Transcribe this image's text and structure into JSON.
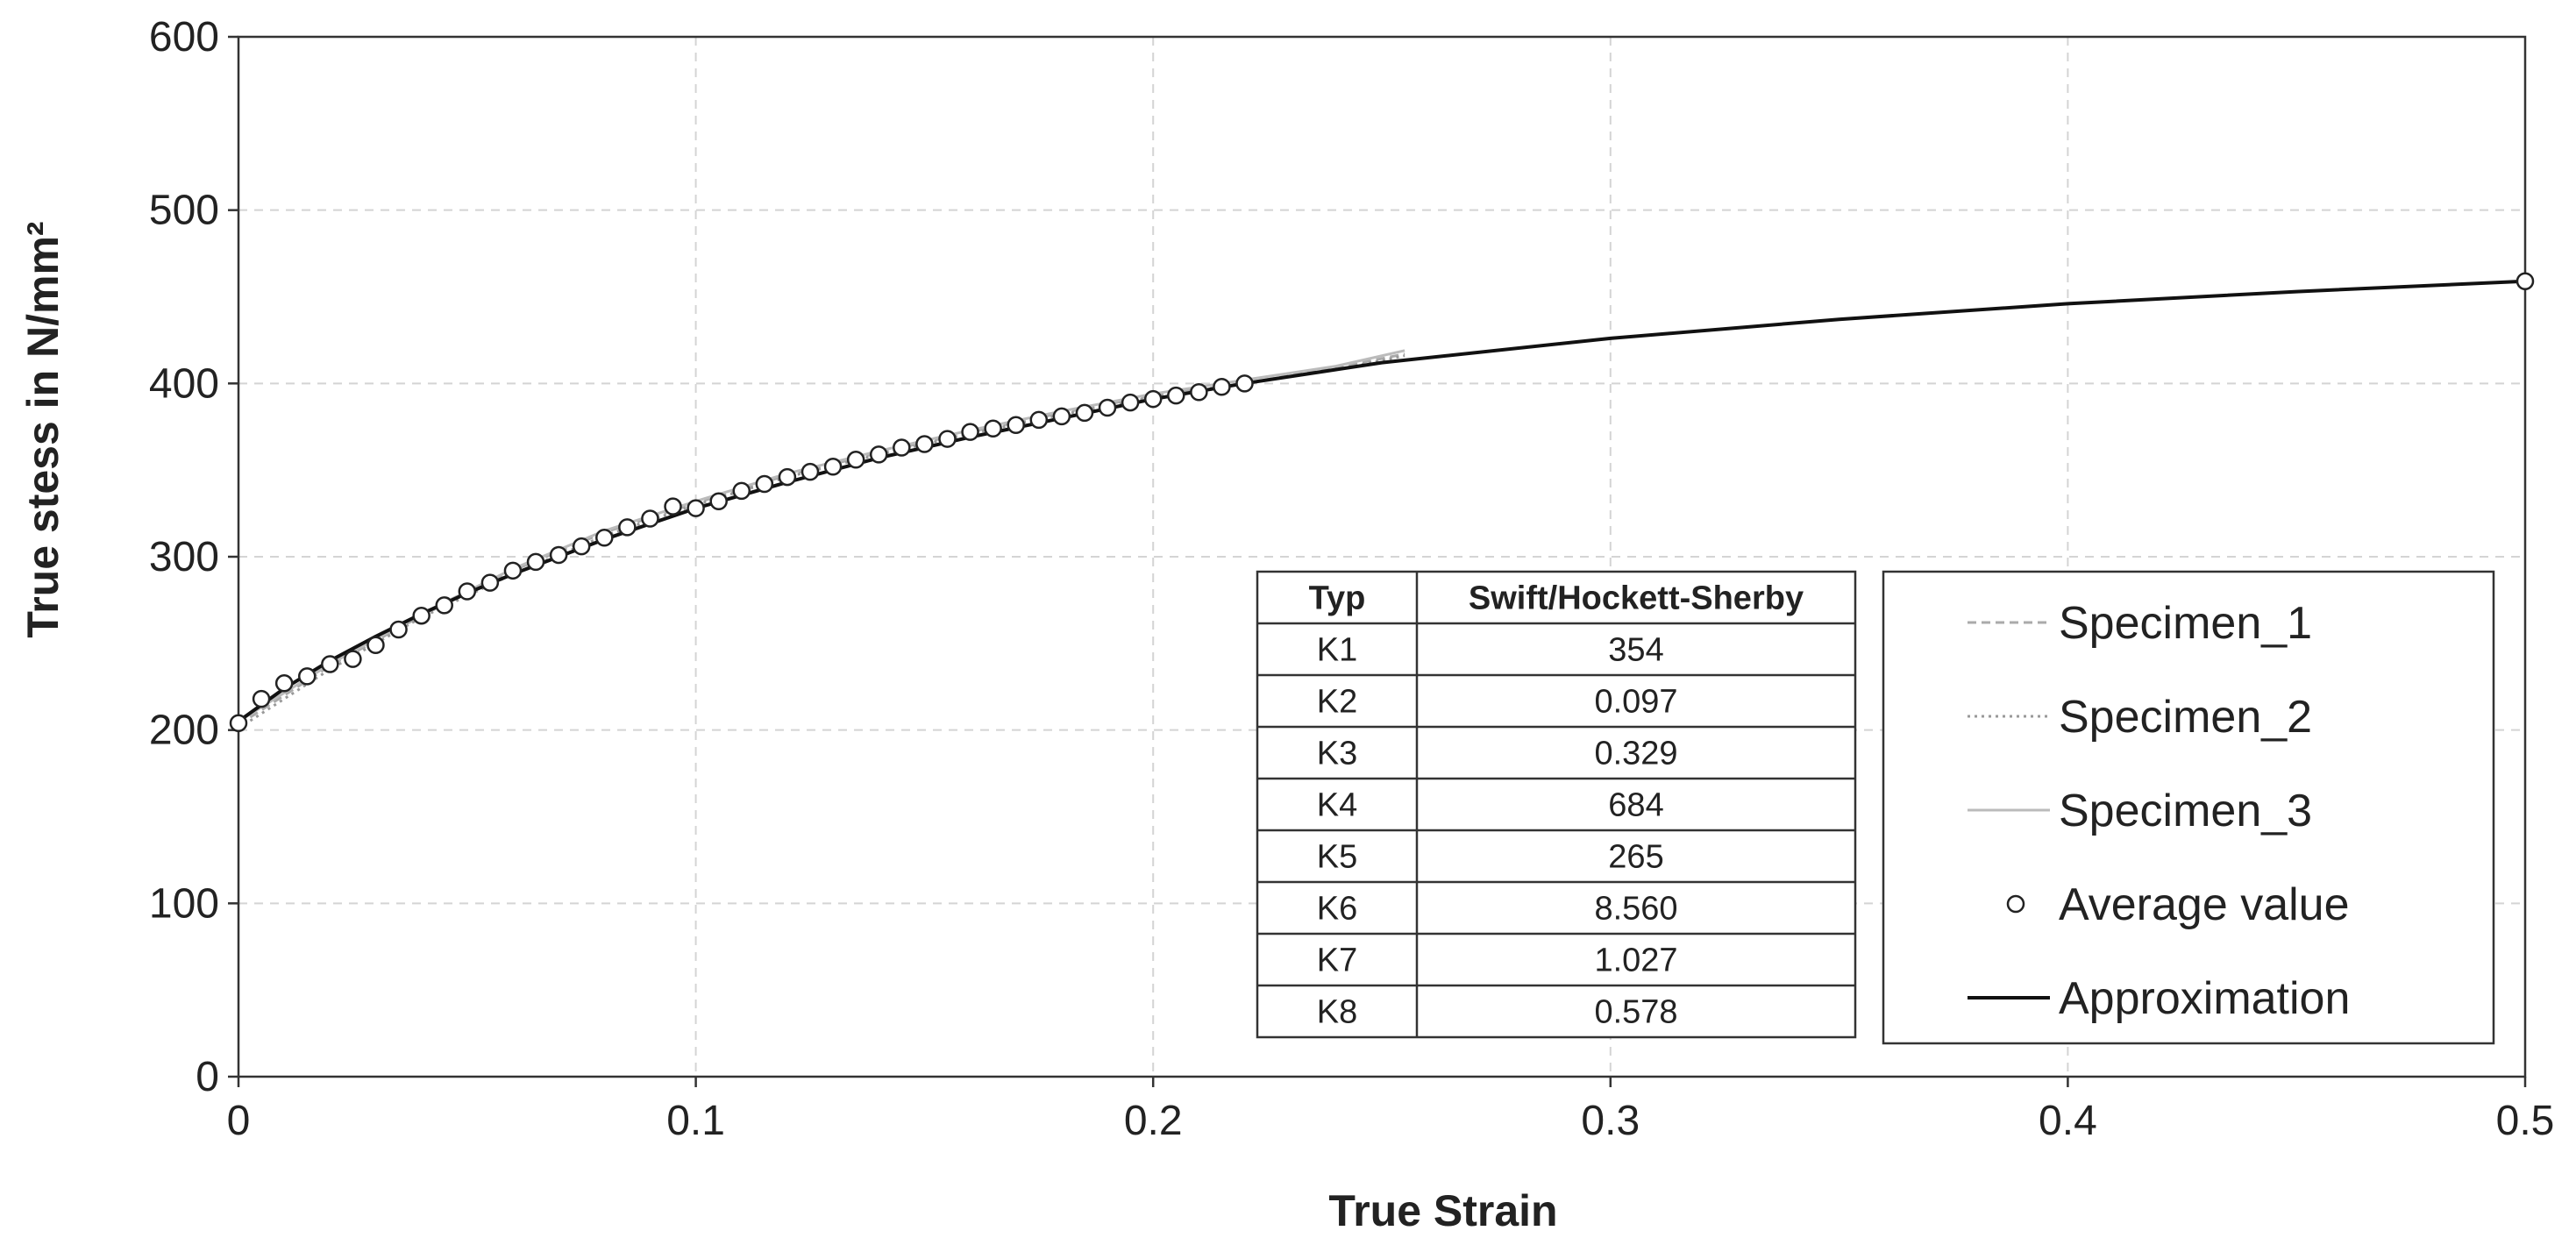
{
  "chart_data": {
    "type": "line",
    "title": "",
    "xlabel": "True Strain",
    "ylabel": "True stess in N/mm²",
    "xlim": [
      0,
      0.5
    ],
    "ylim": [
      0,
      600
    ],
    "x_ticks": [
      "0",
      "0.1",
      "0.2",
      "0.3",
      "0.4",
      "0.5"
    ],
    "y_ticks": [
      "0",
      "100",
      "200",
      "300",
      "400",
      "500",
      "600"
    ],
    "grid": true,
    "legend_position": "bottom-right",
    "series": [
      {
        "name": "Specimen_1",
        "style": "dashed",
        "color": "#aaaaaa",
        "x": [
          0,
          0.02,
          0.04,
          0.06,
          0.08,
          0.1,
          0.12,
          0.14,
          0.16,
          0.18,
          0.2,
          0.22,
          0.24,
          0.255
        ],
        "y": [
          203,
          237,
          266,
          292,
          314,
          331,
          347,
          360,
          372,
          383,
          393,
          400,
          409,
          417
        ]
      },
      {
        "name": "Specimen_2",
        "style": "dotted",
        "color": "#999999",
        "x": [
          0,
          0.02,
          0.04,
          0.06,
          0.08,
          0.1,
          0.12,
          0.14,
          0.16,
          0.18,
          0.2,
          0.22,
          0.24,
          0.255
        ],
        "y": [
          201,
          235,
          265,
          290,
          312,
          330,
          346,
          359,
          371,
          382,
          392,
          400,
          408,
          416
        ]
      },
      {
        "name": "Specimen_3",
        "style": "solid",
        "color": "#bbbbbb",
        "x": [
          0,
          0.02,
          0.04,
          0.06,
          0.08,
          0.1,
          0.12,
          0.14,
          0.16,
          0.18,
          0.2,
          0.22,
          0.24,
          0.255
        ],
        "y": [
          205,
          238,
          267,
          293,
          315,
          332,
          348,
          361,
          373,
          384,
          394,
          402,
          410,
          419
        ]
      },
      {
        "name": "Average value",
        "style": "markers",
        "color": "#222222",
        "x": [
          0,
          0.005,
          0.01,
          0.015,
          0.02,
          0.025,
          0.03,
          0.035,
          0.04,
          0.045,
          0.05,
          0.055,
          0.06,
          0.065,
          0.07,
          0.075,
          0.08,
          0.085,
          0.09,
          0.095,
          0.1,
          0.105,
          0.11,
          0.115,
          0.12,
          0.125,
          0.13,
          0.135,
          0.14,
          0.145,
          0.15,
          0.155,
          0.16,
          0.165,
          0.17,
          0.175,
          0.18,
          0.185,
          0.19,
          0.195,
          0.2,
          0.205,
          0.21,
          0.215,
          0.22,
          0.5
        ],
        "y": [
          204,
          218,
          227,
          231,
          238,
          241,
          249,
          258,
          266,
          272,
          280,
          285,
          292,
          297,
          301,
          306,
          311,
          317,
          322,
          329,
          328,
          332,
          338,
          342,
          346,
          349,
          352,
          356,
          359,
          363,
          365,
          368,
          372,
          374,
          376,
          379,
          381,
          383,
          386,
          389,
          391,
          393,
          395,
          398,
          400,
          459
        ]
      },
      {
        "name": "Approximation",
        "style": "solid",
        "color": "#111111",
        "x": [
          0,
          0.01,
          0.02,
          0.03,
          0.04,
          0.05,
          0.06,
          0.08,
          0.1,
          0.12,
          0.14,
          0.16,
          0.18,
          0.2,
          0.22,
          0.25,
          0.3,
          0.35,
          0.4,
          0.45,
          0.5
        ],
        "y": [
          205,
          224,
          240,
          254,
          267,
          279,
          290,
          310,
          328,
          343,
          357,
          369,
          380,
          391,
          400,
          412,
          426,
          437,
          446,
          453,
          459
        ]
      }
    ],
    "table": {
      "headers": [
        "Typ",
        "Swift/Hockett-Sherby"
      ],
      "rows": [
        [
          "K1",
          "354"
        ],
        [
          "K2",
          "0.097"
        ],
        [
          "K3",
          "0.329"
        ],
        [
          "K4",
          "684"
        ],
        [
          "K5",
          "265"
        ],
        [
          "K6",
          "8.560"
        ],
        [
          "K7",
          "1.027"
        ],
        [
          "K8",
          "0.578"
        ]
      ]
    }
  }
}
